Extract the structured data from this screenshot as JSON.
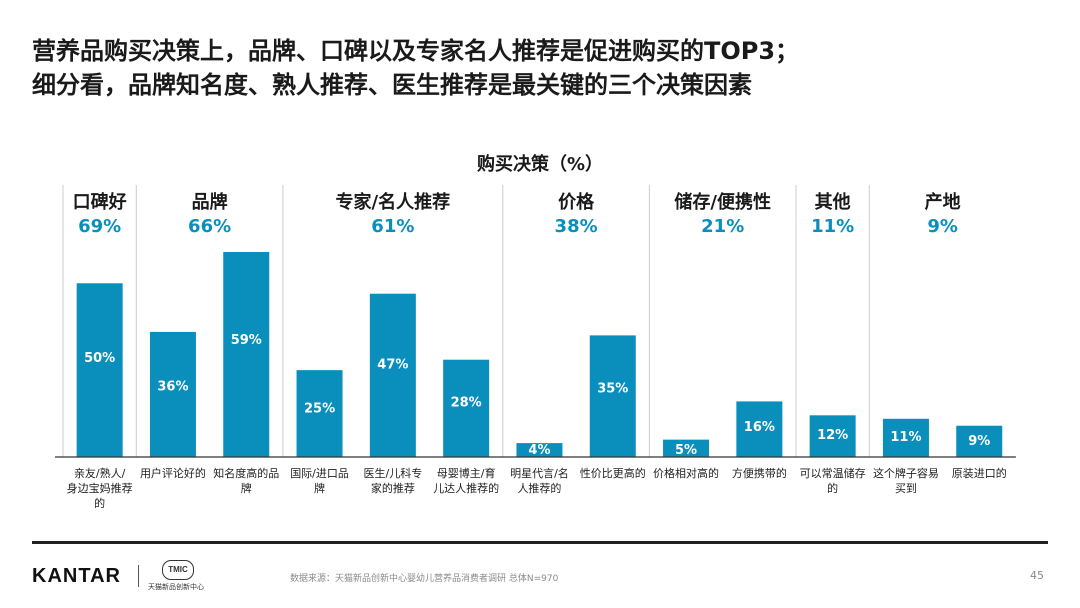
{
  "title_lines": [
    "营养品购买决策上，品牌、口碑以及专家名人推荐是促进购买的TOP3；",
    "细分看，品牌知名度、熟人推荐、医生推荐是最关键的三个决策因素"
  ],
  "chart_data": {
    "type": "bar",
    "title": "购买决策（%）",
    "groups": [
      {
        "name": "口碑好",
        "total": "69%",
        "items": [
          {
            "label": "亲友/熟人/身边宝妈推荐的",
            "value": 50
          }
        ]
      },
      {
        "name": "品牌",
        "total": "66%",
        "items": [
          {
            "label": "用户评论好的",
            "value": 36
          },
          {
            "label": "知名度高的品牌",
            "value": 59
          }
        ]
      },
      {
        "name": "专家/名人推荐",
        "total": "61%",
        "items": [
          {
            "label": "国际/进口品牌",
            "value": 25
          },
          {
            "label": "医生/儿科专家的推荐",
            "value": 47
          },
          {
            "label": "母婴博主/育儿达人推荐的",
            "value": 28
          }
        ]
      },
      {
        "name": "价格",
        "total": "38%",
        "items": [
          {
            "label": "明星代言/名人推荐的",
            "value": 4
          },
          {
            "label": "性价比更高的",
            "value": 35
          }
        ]
      },
      {
        "name": "储存/便携性",
        "total": "21%",
        "items": [
          {
            "label": "价格相对高的",
            "value": 5
          },
          {
            "label": "方便携带的",
            "value": 16
          }
        ]
      },
      {
        "name": "其他",
        "total": "11%",
        "items": [
          {
            "label": "可以常温储存的",
            "value": 12
          }
        ]
      },
      {
        "name": "产地",
        "total": "9%",
        "items": [
          {
            "label": "这个牌子容易买到",
            "value": 11
          },
          {
            "label": "原装进口的",
            "value": 9
          }
        ]
      }
    ],
    "value_suffix": "%",
    "colors": {
      "bar": "#0a8fbd",
      "group_header": "#0a8fbd",
      "bar_label": "#ffffff",
      "divider": "#cccccc",
      "axis": "#333333"
    }
  },
  "footer": {
    "brand": "KANTAR",
    "partner_logo_text": "TMIC",
    "partner_name": "天猫新品创新中心",
    "source": "数据来源：天猫新品创新中心婴幼儿营养品消费者调研  总体N=970",
    "page_number": "45"
  }
}
